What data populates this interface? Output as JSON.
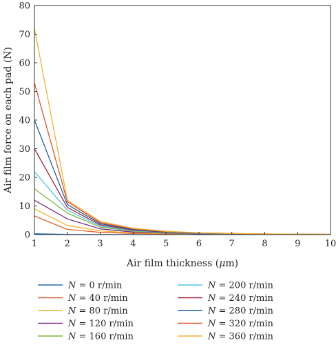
{
  "chart_data": {
    "type": "line",
    "title": "",
    "xlabel": "Air film thickness (μm)",
    "xlabel_parts": {
      "pre": "Air film thickness (",
      "unit": "μ",
      "post": "m)"
    },
    "ylabel": "Air film force on each pad (N)",
    "xlim": [
      1,
      10
    ],
    "ylim": [
      0,
      80
    ],
    "x_ticks": [
      1,
      2,
      3,
      4,
      5,
      6,
      7,
      8,
      9,
      10
    ],
    "y_ticks": [
      0,
      10,
      20,
      30,
      40,
      50,
      60,
      70,
      80
    ],
    "grid": false,
    "legend_position": "bottom",
    "x": [
      1,
      2,
      3,
      4,
      5,
      6,
      7,
      8,
      9,
      10
    ],
    "series": [
      {
        "name": "N = 0 r/min",
        "color": "#1f6fb4",
        "values": [
          0.3,
          0.1,
          0.05,
          0.02,
          0.01,
          0.01,
          0.0,
          0.0,
          0.0,
          0.0
        ]
      },
      {
        "name": "N = 40 r/min",
        "color": "#e0622c",
        "values": [
          6.5,
          1.8,
          0.8,
          0.4,
          0.25,
          0.15,
          0.1,
          0.05,
          0.03,
          0.02
        ]
      },
      {
        "name": "N = 80 r/min",
        "color": "#f0b52d",
        "values": [
          9,
          3.2,
          1.3,
          0.6,
          0.35,
          0.2,
          0.12,
          0.08,
          0.05,
          0.03
        ]
      },
      {
        "name": "N = 120 r/min",
        "color": "#7a2d8c",
        "values": [
          12,
          5.5,
          2.0,
          0.9,
          0.5,
          0.3,
          0.2,
          0.1,
          0.07,
          0.05
        ]
      },
      {
        "name": "N = 160 r/min",
        "color": "#7bb53d",
        "values": [
          16,
          7.5,
          2.6,
          1.2,
          0.65,
          0.4,
          0.25,
          0.15,
          0.1,
          0.06
        ]
      },
      {
        "name": "N = 200 r/min",
        "color": "#4fc3e8",
        "values": [
          22,
          8.5,
          3.0,
          1.4,
          0.75,
          0.45,
          0.3,
          0.18,
          0.12,
          0.08
        ]
      },
      {
        "name": "N = 240 r/min",
        "color": "#a3213a",
        "values": [
          30,
          9.5,
          3.4,
          1.6,
          0.85,
          0.5,
          0.32,
          0.2,
          0.13,
          0.09
        ]
      },
      {
        "name": "N = 280 r/min",
        "color": "#1c5fa8",
        "values": [
          40,
          10.5,
          3.8,
          1.8,
          0.95,
          0.55,
          0.35,
          0.22,
          0.14,
          0.1
        ]
      },
      {
        "name": "N = 320 r/min",
        "color": "#d9542a",
        "values": [
          53,
          11.5,
          4.2,
          2.0,
          1.05,
          0.6,
          0.38,
          0.24,
          0.15,
          0.11
        ]
      },
      {
        "name": "N = 360 r/min",
        "color": "#f2b230",
        "values": [
          72,
          12,
          4.6,
          2.2,
          1.15,
          0.65,
          0.4,
          0.26,
          0.16,
          0.12
        ]
      }
    ]
  }
}
